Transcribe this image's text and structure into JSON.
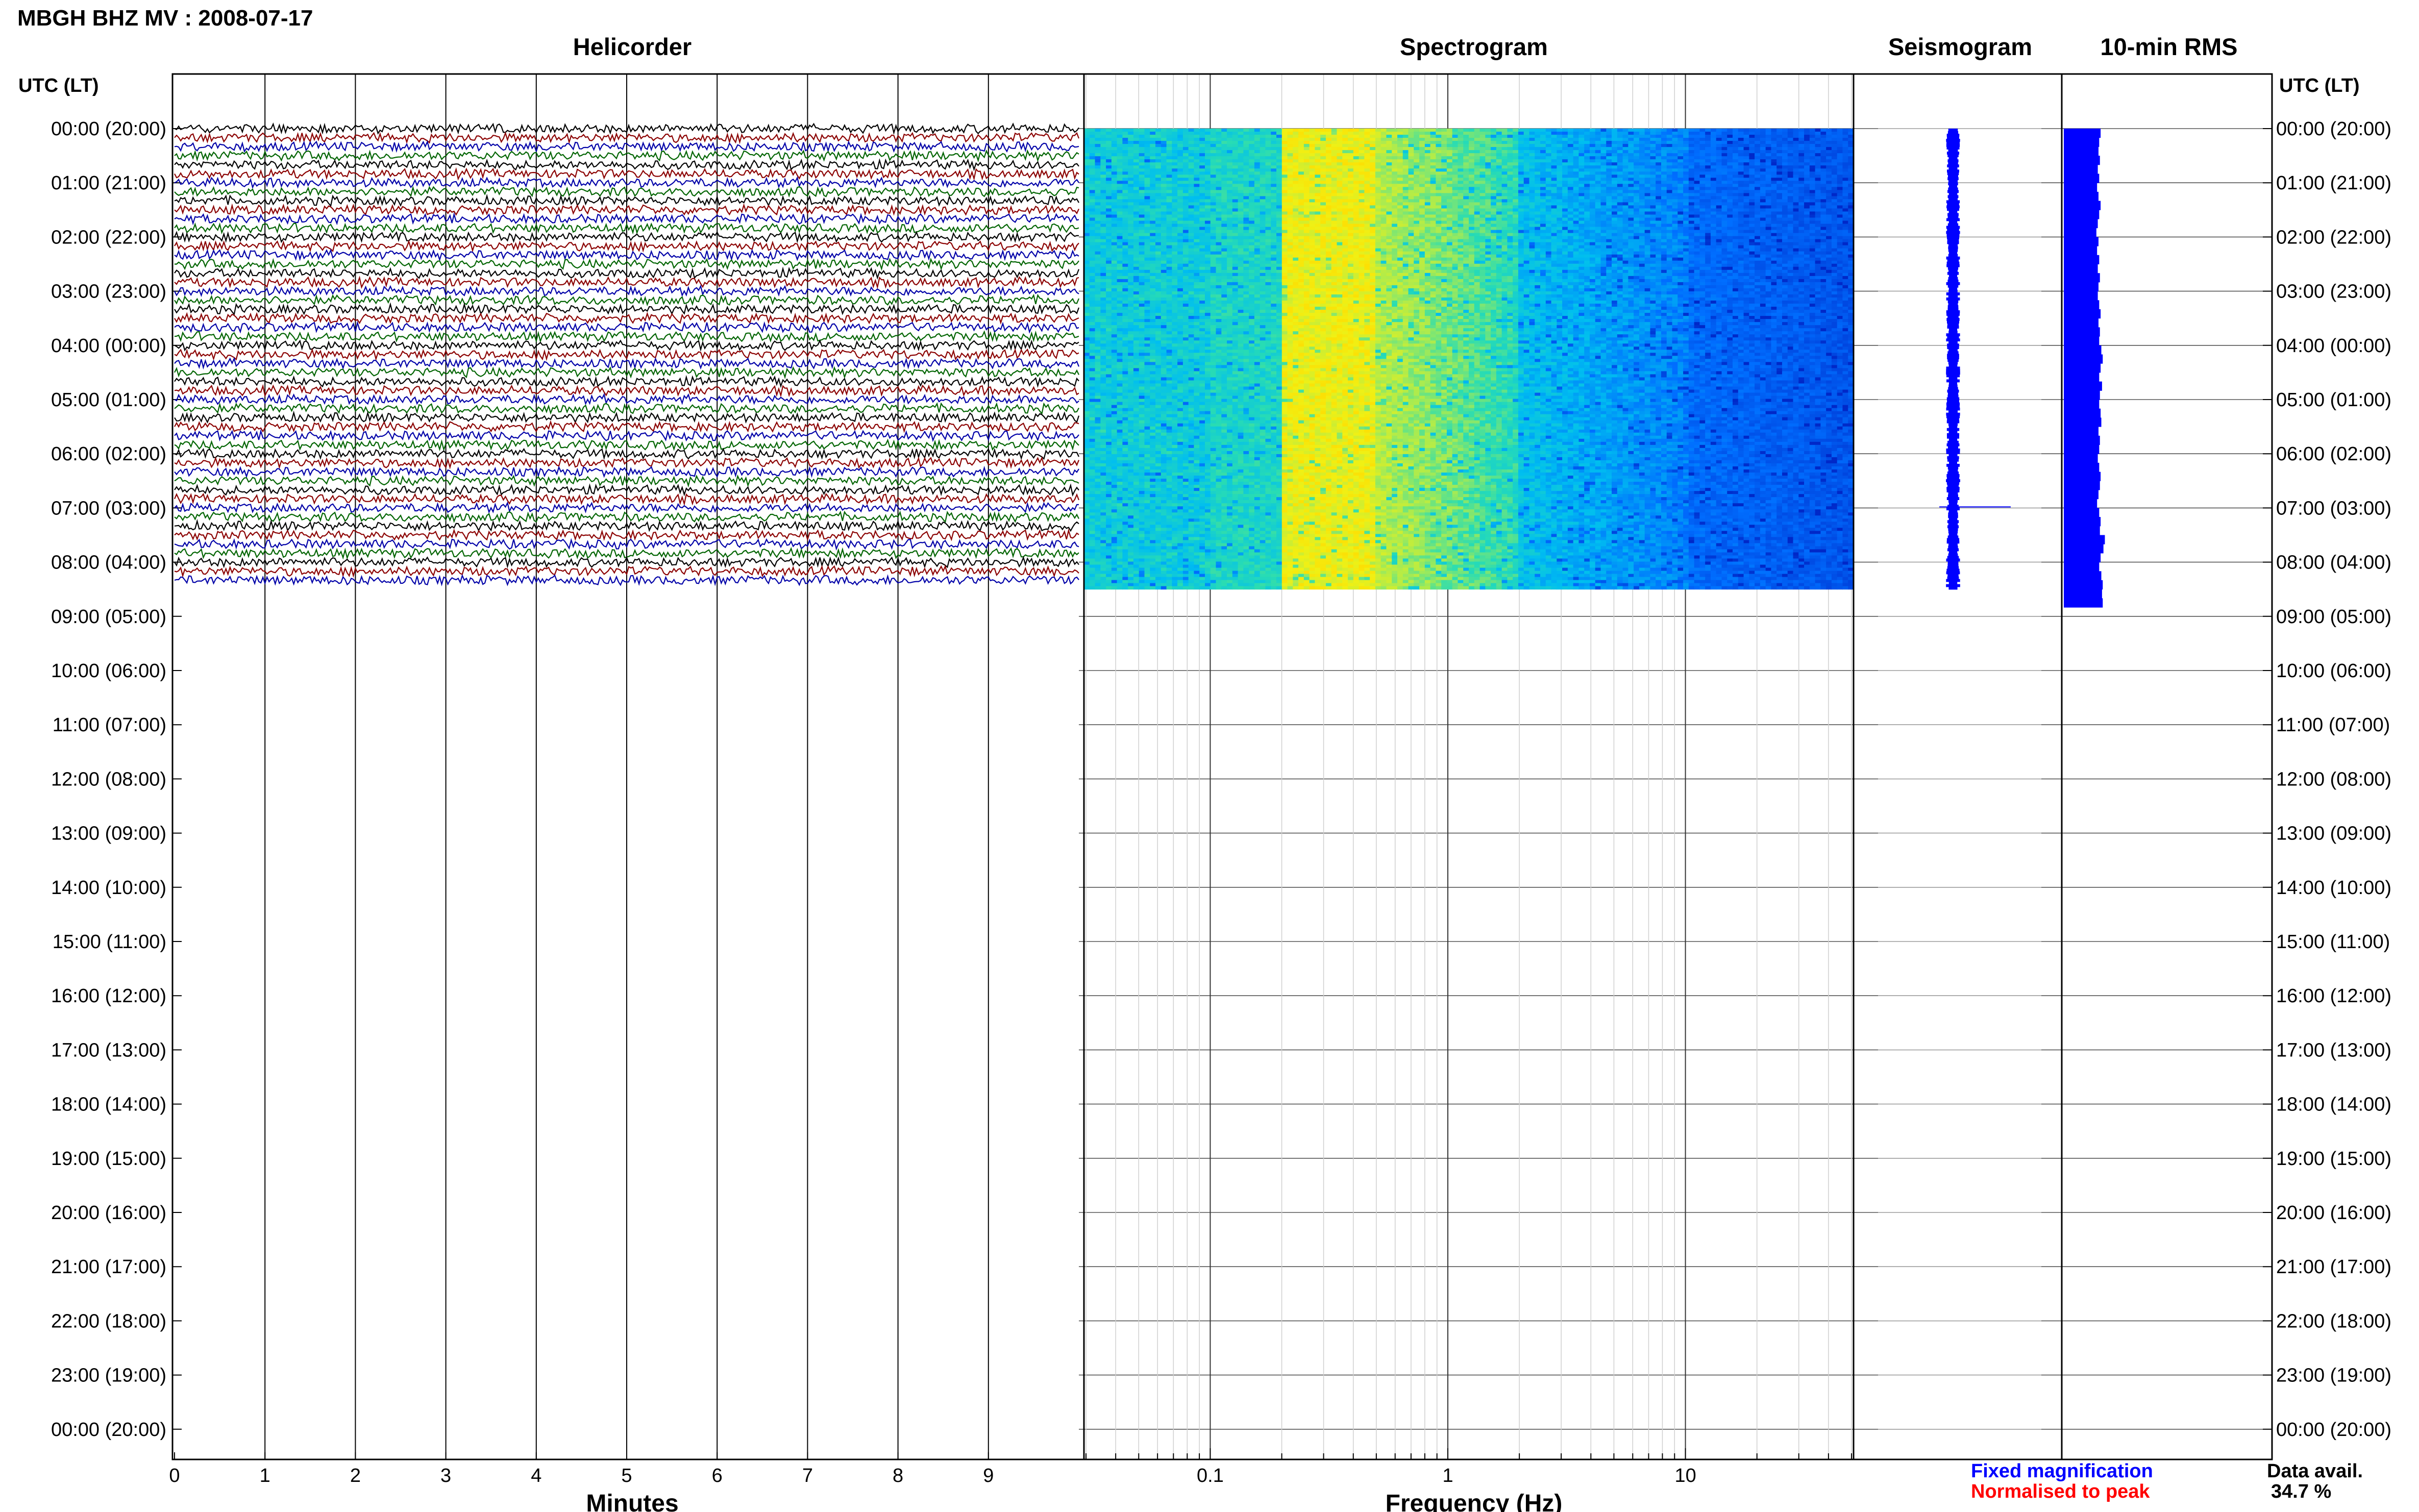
{
  "title": "MBGH BHZ MV : 2008-07-17",
  "panels": {
    "helicorder": "Helicorder",
    "spectrogram": "Spectrogram",
    "seismogram": "Seismogram",
    "rms": "10-min RMS"
  },
  "time_axis_label": "UTC (LT)",
  "time_labels": [
    "00:00 (20:00)",
    "01:00 (21:00)",
    "02:00 (22:00)",
    "03:00 (23:00)",
    "04:00 (00:00)",
    "05:00 (01:00)",
    "06:00 (02:00)",
    "07:00 (03:00)",
    "08:00 (04:00)",
    "09:00 (05:00)",
    "10:00 (06:00)",
    "11:00 (07:00)",
    "12:00 (08:00)",
    "13:00 (09:00)",
    "14:00 (10:00)",
    "15:00 (11:00)",
    "16:00 (12:00)",
    "17:00 (13:00)",
    "18:00 (14:00)",
    "19:00 (15:00)",
    "20:00 (16:00)",
    "21:00 (17:00)",
    "22:00 (18:00)",
    "23:00 (19:00)",
    "00:00 (20:00)"
  ],
  "helicorder_x_ticks": [
    "0",
    "1",
    "2",
    "3",
    "4",
    "5",
    "6",
    "7",
    "8",
    "9"
  ],
  "helicorder_xlabel": "Minutes",
  "spectrogram_x_ticks": [
    "0.1",
    "1",
    "10"
  ],
  "spectrogram_xlabel": "Frequency (Hz)",
  "legend": {
    "fixed": "Fixed magnification",
    "normalised": "Normalised to peak"
  },
  "data_avail_label": "Data avail.",
  "data_avail_value": "34.7 %",
  "colors": {
    "trace_black": "#000000",
    "trace_red": "#8b0000",
    "trace_blue": "#0000a8",
    "trace_green": "#006400",
    "rms_fill": "#0000ff",
    "legend_fixed": "#0000ff",
    "legend_normalised": "#ff0000"
  },
  "chart_data": {
    "type": "line",
    "helicorder": {
      "x_unit": "minutes",
      "xlim": [
        0,
        10
      ],
      "rows_per_hour": 6,
      "hours_with_data": 8.5,
      "trace_color_cycle": [
        "black",
        "red",
        "blue",
        "green"
      ]
    },
    "spectrogram": {
      "x_scale": "log",
      "xlim_hz": [
        0.03,
        50
      ],
      "peak_band_hz": [
        0.2,
        0.5
      ]
    },
    "rms_10min": {
      "unit": "relative",
      "values": [
        0.52,
        0.5,
        0.49,
        0.51,
        0.48,
        0.5,
        0.47,
        0.49,
        0.52,
        0.5,
        0.48,
        0.46,
        0.49,
        0.47,
        0.5,
        0.48,
        0.51,
        0.49,
        0.48,
        0.5,
        0.52,
        0.49,
        0.51,
        0.5,
        0.53,
        0.55,
        0.52,
        0.5,
        0.54,
        0.51,
        0.5,
        0.52,
        0.53,
        0.49,
        0.51,
        0.5,
        0.48,
        0.5,
        0.52,
        0.51,
        0.49,
        0.47,
        0.5,
        0.52,
        0.51,
        0.58,
        0.56,
        0.52,
        0.5,
        0.53,
        0.55,
        0.54,
        0.55
      ]
    }
  }
}
